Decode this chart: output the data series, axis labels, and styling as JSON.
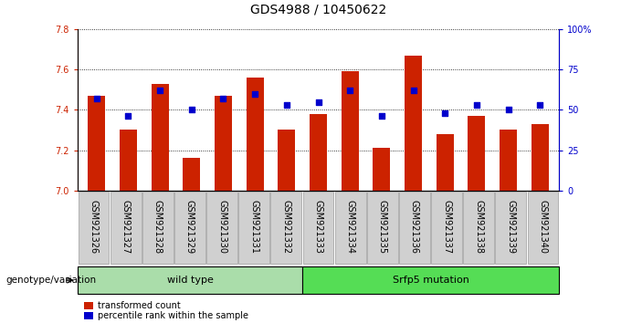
{
  "title": "GDS4988 / 10450622",
  "samples": [
    "GSM921326",
    "GSM921327",
    "GSM921328",
    "GSM921329",
    "GSM921330",
    "GSM921331",
    "GSM921332",
    "GSM921333",
    "GSM921334",
    "GSM921335",
    "GSM921336",
    "GSM921337",
    "GSM921338",
    "GSM921339",
    "GSM921340"
  ],
  "transformed_count": [
    7.47,
    7.3,
    7.53,
    7.16,
    7.47,
    7.56,
    7.3,
    7.38,
    7.59,
    7.21,
    7.67,
    7.28,
    7.37,
    7.3,
    7.33
  ],
  "percentile_rank": [
    57,
    46,
    62,
    50,
    57,
    60,
    53,
    55,
    62,
    46,
    62,
    48,
    53,
    50,
    53
  ],
  "ymin": 7.0,
  "ymax": 7.8,
  "y_ticks": [
    7.0,
    7.2,
    7.4,
    7.6,
    7.8
  ],
  "percentile_ticks": [
    0,
    25,
    50,
    75,
    100
  ],
  "percentile_tick_labels": [
    "0",
    "25",
    "50",
    "75",
    "100%"
  ],
  "bar_color": "#cc2200",
  "dot_color": "#0000cc",
  "wild_type_count": 7,
  "mutation_count": 8,
  "wild_type_label": "wild type",
  "mutation_label": "Srfp5 mutation",
  "group_label": "genotype/variation",
  "legend_transformed": "transformed count",
  "legend_percentile": "percentile rank within the sample",
  "light_green": "#aaddaa",
  "bright_green": "#55dd55",
  "title_fontsize": 10,
  "tick_fontsize": 7,
  "legend_fontsize": 7,
  "group_fontsize": 8
}
